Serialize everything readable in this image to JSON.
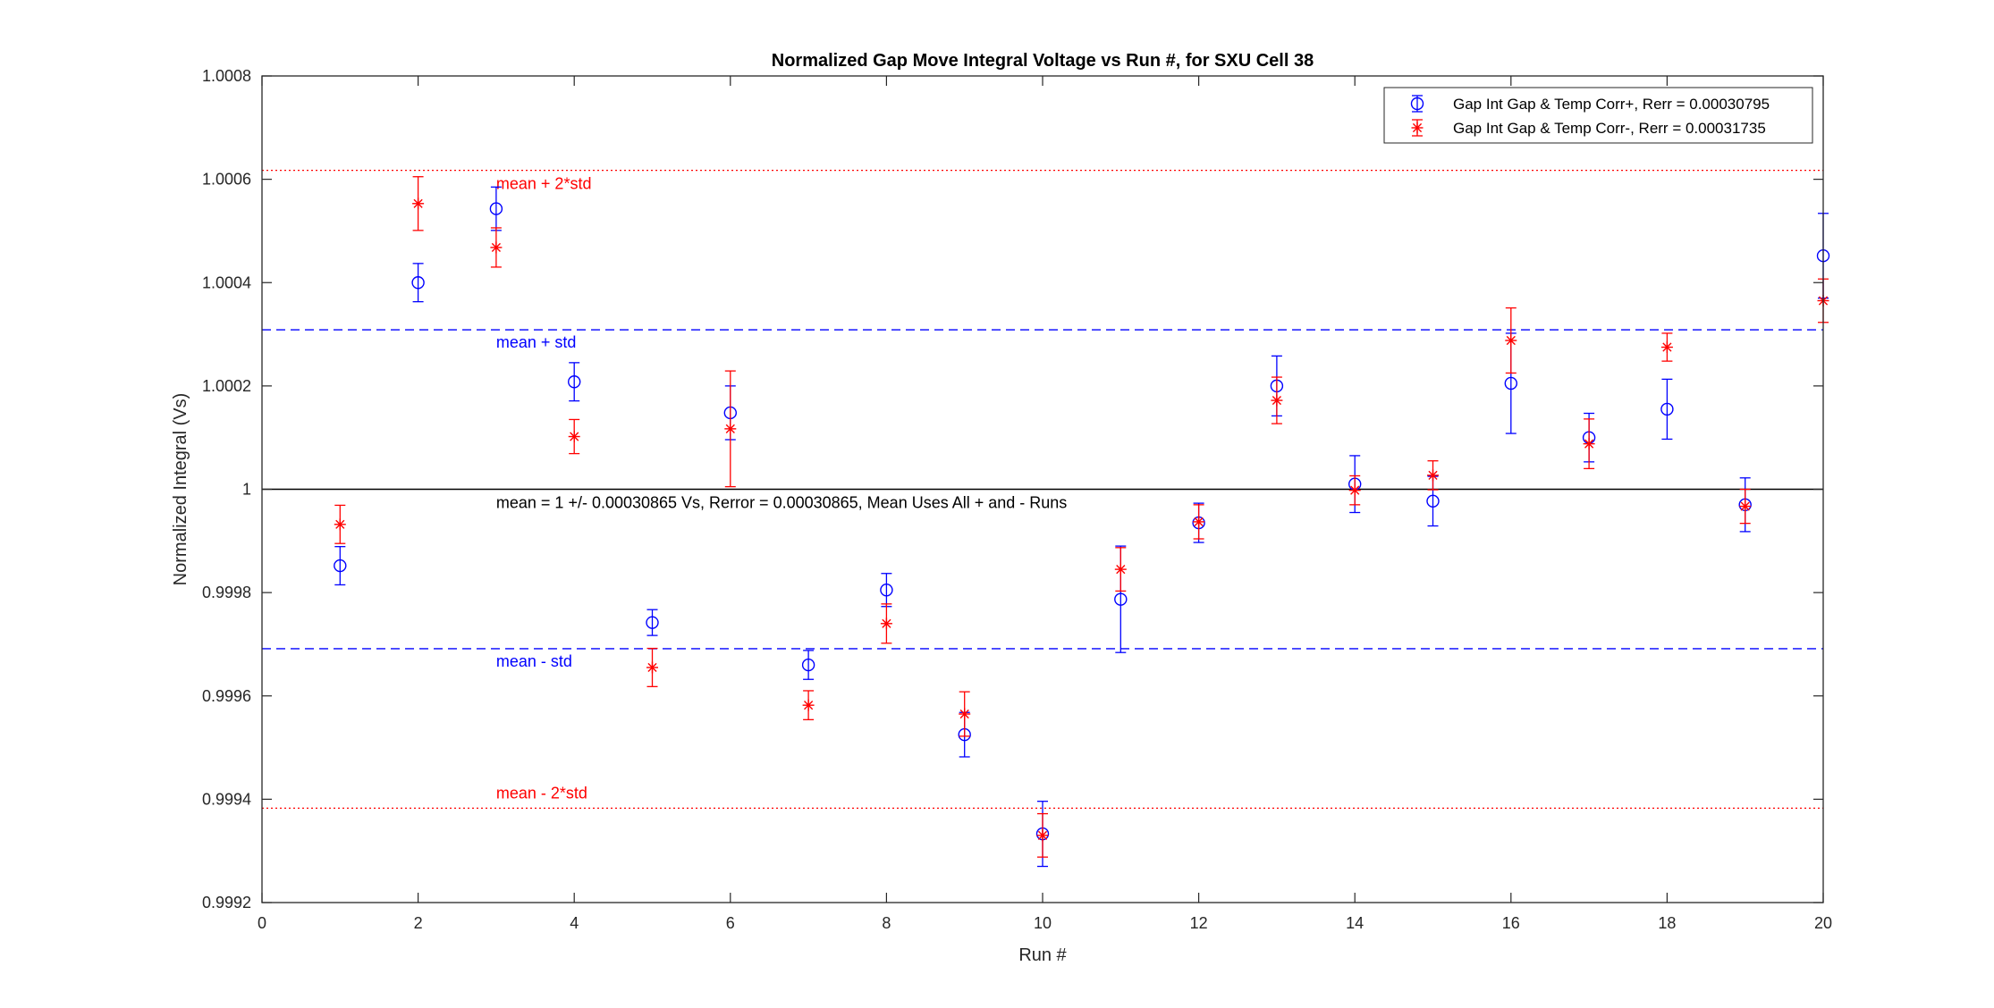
{
  "chart_data": {
    "type": "scatter",
    "title": "Normalized Gap Move Integral Voltage vs Run #, for SXU Cell 38",
    "xlabel": "Run #",
    "ylabel": "Normalized Integral (Vs)",
    "xlim": [
      0,
      20
    ],
    "ylim": [
      0.9992,
      1.0008
    ],
    "xticks": [
      0,
      2,
      4,
      6,
      8,
      10,
      12,
      14,
      16,
      18,
      20
    ],
    "xtick_labels": [
      "0",
      "2",
      "4",
      "6",
      "8",
      "10",
      "12",
      "14",
      "16",
      "18",
      "20"
    ],
    "yticks": [
      0.9992,
      0.9994,
      0.9996,
      0.9998,
      1.0,
      1.0002,
      1.0004,
      1.0006,
      1.0008
    ],
    "ytick_labels": [
      "0.9992",
      "0.9994",
      "0.9996",
      "0.9998",
      "1",
      "1.0002",
      "1.0004",
      "1.0006",
      "1.0008"
    ],
    "grid": false,
    "legend_position": "top-right",
    "series": [
      {
        "name": "Gap Int Gap & Temp Corr+, Rerr = 0.00030795",
        "color": "#0000ff",
        "marker": "circle",
        "x": [
          1,
          2,
          3,
          4,
          5,
          7,
          8,
          9,
          10,
          11,
          12,
          13,
          14,
          15,
          16,
          17,
          18,
          19,
          20,
          6
        ],
        "y": [
          0.999852,
          1.0004,
          1.000543,
          1.000208,
          0.999742,
          0.99966,
          0.999805,
          0.999525,
          0.999333,
          0.999787,
          0.999935,
          1.0002,
          1.00001,
          0.999977,
          1.000205,
          1.0001,
          1.000155,
          0.99997,
          1.000452,
          1.000148
        ],
        "err": [
          3.7e-05,
          3.7e-05,
          4.2e-05,
          3.7e-05,
          2.5e-05,
          2.8e-05,
          3.2e-05,
          4.3e-05,
          6.3e-05,
          0.000103,
          3.8e-05,
          5.8e-05,
          5.5e-05,
          4.8e-05,
          9.7e-05,
          4.7e-05,
          5.8e-05,
          5.2e-05,
          8.2e-05,
          5.2e-05
        ]
      },
      {
        "name": "Gap Int Gap & Temp  Corr-, Rerr = 0.00031735",
        "color": "#ff0000",
        "marker": "asterisk",
        "x": [
          1,
          2,
          3,
          4,
          5,
          6,
          7,
          8,
          9,
          10,
          11,
          12,
          13,
          14,
          15,
          16,
          17,
          18,
          19,
          20
        ],
        "y": [
          0.999932,
          1.000553,
          1.000468,
          1.000102,
          0.999655,
          1.000117,
          0.999582,
          0.99974,
          0.999565,
          0.99933,
          0.999845,
          0.999937,
          1.000172,
          0.999998,
          1.000027,
          1.000288,
          1.000088,
          1.000275,
          0.999967,
          1.000365
        ],
        "err": [
          3.7e-05,
          5.2e-05,
          3.8e-05,
          3.3e-05,
          3.7e-05,
          0.000112,
          2.8e-05,
          3.8e-05,
          4.3e-05,
          4.2e-05,
          4.2e-05,
          3.3e-05,
          4.5e-05,
          2.8e-05,
          2.8e-05,
          6.3e-05,
          4.8e-05,
          2.7e-05,
          3.3e-05,
          4.2e-05
        ]
      }
    ],
    "reference_lines": [
      {
        "y": 1.0006173,
        "style": "dotted",
        "color": "#ff0000",
        "label": "mean + 2*std",
        "label_color": "#ff0000"
      },
      {
        "y": 1.00030865,
        "style": "dashed",
        "color": "#0000ff",
        "label": "mean + std",
        "label_color": "#0000ff"
      },
      {
        "y": 1.0,
        "style": "solid",
        "color": "#000000",
        "label": "mean = 1 +/- 0.00030865 Vs, Rerror = 0.00030865, Mean Uses All + and - Runs",
        "label_color": "#000000"
      },
      {
        "y": 0.99969135,
        "style": "dashed",
        "color": "#0000ff",
        "label": "mean - std",
        "label_color": "#0000ff"
      },
      {
        "y": 0.9993827,
        "style": "dotted",
        "color": "#ff0000",
        "label": "mean - 2*std",
        "label_color": "#ff0000"
      }
    ]
  }
}
